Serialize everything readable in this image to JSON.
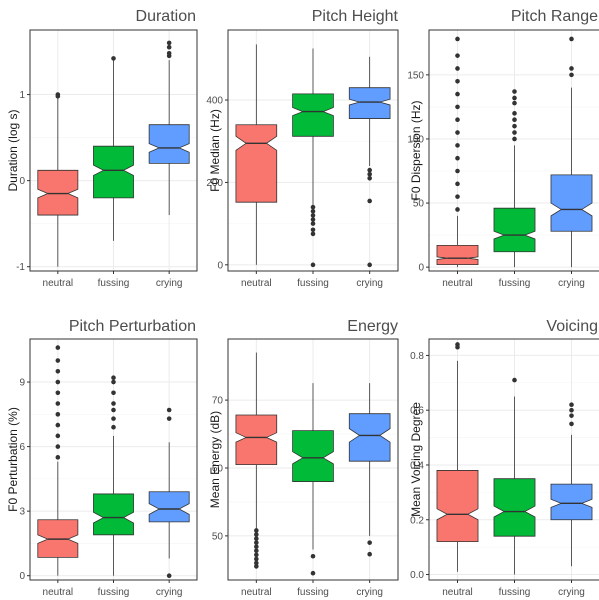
{
  "chart_data": [
    {
      "type": "boxplot",
      "title": "Duration",
      "xlabel": "",
      "ylabel": "Duration (log s)",
      "categories": [
        "neutral",
        "fussing",
        "crying"
      ],
      "ylim": [
        -1.05,
        1.75
      ],
      "yticks": [
        -1,
        0,
        1
      ],
      "ytick_labels": [
        "-1",
        "0",
        "1"
      ],
      "boxes": [
        {
          "lower_whisker": -1.0,
          "q1": -0.4,
          "median": -0.15,
          "q3": 0.12,
          "upper_whisker": 0.98,
          "notch": [
            -0.2,
            -0.1
          ],
          "outliers": [
            1.0,
            0.98
          ]
        },
        {
          "lower_whisker": -0.7,
          "q1": -0.2,
          "median": 0.12,
          "q3": 0.4,
          "upper_whisker": 1.4,
          "notch": [
            0.06,
            0.18
          ],
          "outliers": [
            1.42
          ]
        },
        {
          "lower_whisker": -0.4,
          "q1": 0.2,
          "median": 0.38,
          "q3": 0.65,
          "upper_whisker": 1.4,
          "notch": [
            0.33,
            0.43
          ],
          "outliers": [
            1.6,
            1.55,
            1.48,
            1.45
          ]
        }
      ],
      "grid": true,
      "legend": "none"
    },
    {
      "type": "boxplot",
      "title": "Pitch Height",
      "xlabel": "",
      "ylabel": "F0 Median (Hz)",
      "categories": [
        "neutral",
        "fussing",
        "crying"
      ],
      "ylim": [
        -15,
        570
      ],
      "yticks": [
        0,
        200,
        400
      ],
      "ytick_labels": [
        "0",
        "200",
        "400"
      ],
      "boxes": [
        {
          "lower_whisker": 0,
          "q1": 152,
          "median": 295,
          "q3": 340,
          "upper_whisker": 535,
          "notch": [
            278,
            312
          ],
          "outliers": []
        },
        {
          "lower_whisker": 120,
          "q1": 312,
          "median": 372,
          "q3": 415,
          "upper_whisker": 525,
          "notch": [
            362,
            382
          ],
          "outliers": [
            140,
            130,
            120,
            110,
            100,
            85,
            75,
            0
          ]
        },
        {
          "lower_whisker": 240,
          "q1": 355,
          "median": 395,
          "q3": 430,
          "upper_whisker": 505,
          "notch": [
            388,
            402
          ],
          "outliers": [
            230,
            220,
            210,
            155,
            0
          ]
        }
      ],
      "grid": true,
      "legend": "none"
    },
    {
      "type": "boxplot",
      "title": "Pitch Range",
      "xlabel": "",
      "ylabel": "F0 Dispersion (Hz)",
      "categories": [
        "neutral",
        "fussing",
        "crying"
      ],
      "ylim": [
        -3,
        185
      ],
      "yticks": [
        0,
        50,
        100,
        150
      ],
      "ytick_labels": [
        "0",
        "50",
        "100",
        "150"
      ],
      "boxes": [
        {
          "lower_whisker": 0,
          "q1": 2,
          "median": 7,
          "q3": 17,
          "upper_whisker": 40,
          "notch": [
            6,
            8
          ],
          "outliers": [
            45,
            55,
            65,
            75,
            85,
            95,
            105,
            115,
            125,
            135,
            145,
            155,
            165,
            178
          ]
        },
        {
          "lower_whisker": 0,
          "q1": 12,
          "median": 25,
          "q3": 46,
          "upper_whisker": 95,
          "notch": [
            22,
            28
          ],
          "outliers": [
            100,
            105,
            110,
            115,
            120,
            128,
            132,
            137
          ]
        },
        {
          "lower_whisker": 0,
          "q1": 28,
          "median": 45,
          "q3": 72,
          "upper_whisker": 140,
          "notch": [
            40,
            50
          ],
          "outliers": [
            150,
            155,
            178
          ]
        }
      ],
      "grid": true,
      "legend": "none"
    },
    {
      "type": "boxplot",
      "title": "Pitch Perturbation",
      "xlabel": "",
      "ylabel": "F0 Perturbation (%)",
      "categories": [
        "neutral",
        "fussing",
        "crying"
      ],
      "ylim": [
        -0.2,
        11
      ],
      "yticks": [
        0,
        3,
        6,
        9
      ],
      "ytick_labels": [
        "0",
        "3",
        "6",
        "9"
      ],
      "boxes": [
        {
          "lower_whisker": 0,
          "q1": 0.85,
          "median": 1.7,
          "q3": 2.6,
          "upper_whisker": 5.3,
          "notch": [
            1.5,
            1.9
          ],
          "outliers": [
            5.5,
            6.0,
            6.5,
            7.0,
            7.5,
            8.0,
            8.5,
            9.0,
            9.5,
            10.0,
            10.6
          ]
        },
        {
          "lower_whisker": 0,
          "q1": 1.9,
          "median": 2.7,
          "q3": 3.8,
          "upper_whisker": 6.5,
          "notch": [
            2.45,
            2.95
          ],
          "outliers": [
            6.9,
            7.3,
            7.7,
            8.0,
            8.5,
            9.0,
            9.2
          ]
        },
        {
          "lower_whisker": 0.8,
          "q1": 2.5,
          "median": 3.1,
          "q3": 3.9,
          "upper_whisker": 6.2,
          "notch": [
            2.85,
            3.35
          ],
          "outliers": [
            7.3,
            7.7,
            0
          ]
        }
      ],
      "grid": true,
      "legend": "none"
    },
    {
      "type": "boxplot",
      "title": "Energy",
      "xlabel": "",
      "ylabel": "Mean Energy (dB)",
      "categories": [
        "neutral",
        "fussing",
        "crying"
      ],
      "ylim": [
        43.5,
        79
      ],
      "yticks": [
        50,
        60,
        70
      ],
      "ytick_labels": [
        "50",
        "60",
        "70"
      ],
      "boxes": [
        {
          "lower_whisker": 51,
          "q1": 60.5,
          "median": 64.5,
          "q3": 67.8,
          "upper_whisker": 77,
          "notch": [
            63.8,
            65.2
          ],
          "outliers": [
            50.8,
            50.2,
            49.6,
            49.0,
            48.4,
            47.8,
            47.2,
            46.6,
            46.0,
            45.5
          ]
        },
        {
          "lower_whisker": 48,
          "q1": 58,
          "median": 61.5,
          "q3": 65.5,
          "upper_whisker": 72.5,
          "notch": [
            60.6,
            62.4
          ],
          "outliers": [
            47.0,
            44.5
          ]
        },
        {
          "lower_whisker": 50,
          "q1": 61,
          "median": 64.8,
          "q3": 68,
          "upper_whisker": 72.5,
          "notch": [
            63.8,
            65.8
          ],
          "outliers": [
            49.0,
            47.3
          ]
        }
      ],
      "grid": true,
      "legend": "none"
    },
    {
      "type": "boxplot",
      "title": "Voicing",
      "xlabel": "",
      "ylabel": "Mean Voicing Degree",
      "categories": [
        "neutral",
        "fussing",
        "crying"
      ],
      "ylim": [
        -0.02,
        0.86
      ],
      "yticks": [
        0,
        0.2,
        0.4,
        0.6,
        0.8
      ],
      "ytick_labels": [
        "0.0",
        "0.2",
        "0.4",
        "0.6",
        "0.8"
      ],
      "boxes": [
        {
          "lower_whisker": 0.01,
          "q1": 0.12,
          "median": 0.22,
          "q3": 0.38,
          "upper_whisker": 0.78,
          "notch": [
            0.2,
            0.24
          ],
          "outliers": [
            0.84,
            0.83
          ]
        },
        {
          "lower_whisker": 0,
          "q1": 0.14,
          "median": 0.23,
          "q3": 0.35,
          "upper_whisker": 0.65,
          "notch": [
            0.21,
            0.25
          ],
          "outliers": [
            0.71
          ]
        },
        {
          "lower_whisker": 0.03,
          "q1": 0.2,
          "median": 0.26,
          "q3": 0.33,
          "upper_whisker": 0.51,
          "notch": [
            0.245,
            0.275
          ],
          "outliers": [
            0.55,
            0.58,
            0.6,
            0.62
          ]
        }
      ],
      "grid": true,
      "legend": "none"
    }
  ],
  "colors": {
    "neutral": "#F8766D",
    "fussing": "#00BA38",
    "crying": "#619CFF",
    "panel_border": "#333333",
    "grid_major": "#ebebeb",
    "grid_minor": "#f5f5f5",
    "point": "#333333",
    "box_line": "#333333"
  }
}
